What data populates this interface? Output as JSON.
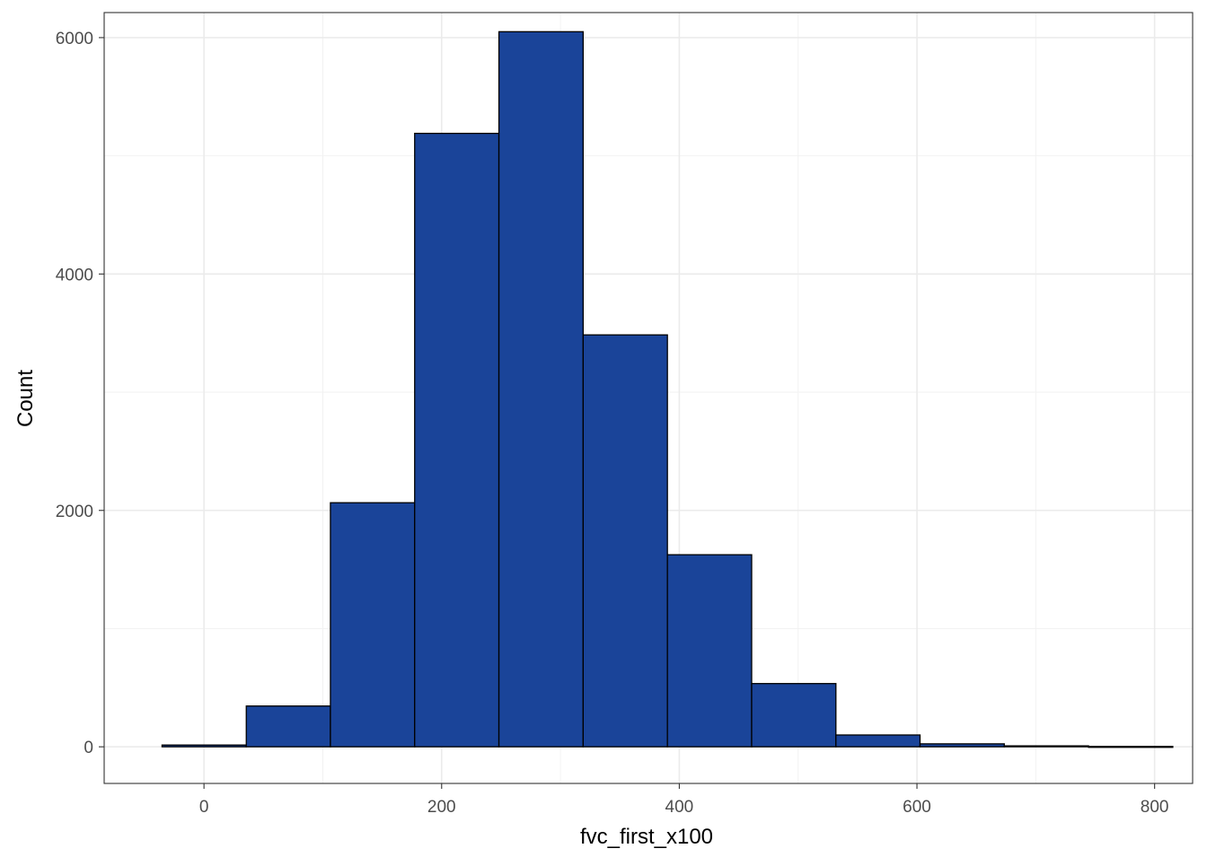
{
  "chart_data": {
    "type": "bar",
    "subtype": "histogram",
    "xlabel": "fvc_first_x100",
    "ylabel": "Count",
    "xlim": [
      -84,
      832
    ],
    "ylim": [
      -310,
      6212
    ],
    "x_ticks": [
      0,
      200,
      400,
      600,
      800
    ],
    "x_tick_labels": [
      "0",
      "200",
      "400",
      "600",
      "800"
    ],
    "y_ticks": [
      0,
      2000,
      4000,
      6000
    ],
    "y_tick_labels": [
      "0",
      "2000",
      "4000",
      "6000"
    ],
    "x_minor_gridlines": [
      100,
      300,
      500,
      700
    ],
    "y_minor_gridlines": [
      1000,
      3000,
      5000
    ],
    "grid": true,
    "bins": [
      {
        "x0": -35.3,
        "x1": 35.6,
        "count": 15
      },
      {
        "x0": 35.6,
        "x1": 106.4,
        "count": 345
      },
      {
        "x0": 106.4,
        "x1": 177.3,
        "count": 2065
      },
      {
        "x0": 177.3,
        "x1": 248.2,
        "count": 5190
      },
      {
        "x0": 248.2,
        "x1": 319.1,
        "count": 6050
      },
      {
        "x0": 319.1,
        "x1": 390.0,
        "count": 3485
      },
      {
        "x0": 390.0,
        "x1": 460.9,
        "count": 1625
      },
      {
        "x0": 460.9,
        "x1": 531.8,
        "count": 535
      },
      {
        "x0": 531.8,
        "x1": 602.6,
        "count": 100
      },
      {
        "x0": 602.6,
        "x1": 673.5,
        "count": 25
      },
      {
        "x0": 673.5,
        "x1": 744.4,
        "count": 8
      },
      {
        "x0": 744.4,
        "x1": 815.3,
        "count": 3
      }
    ],
    "bar_fill": "#1a4499",
    "bar_stroke": "#000000",
    "panel_border": "#333333",
    "grid_major_color": "#ebebeb",
    "grid_minor_color": "#f2f2f2"
  }
}
